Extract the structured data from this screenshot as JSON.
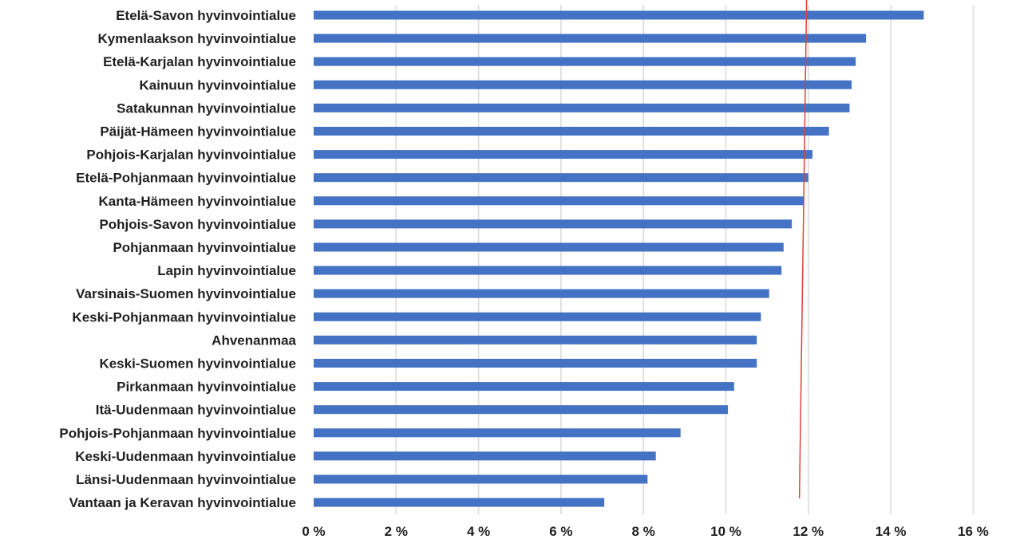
{
  "chart_data": {
    "type": "bar",
    "orientation": "horizontal",
    "categories": [
      "Etelä-Savon hyvinvointialue",
      "Kymenlaakson hyvinvointialue",
      "Etelä-Karjalan hyvinvointialue",
      "Kainuun hyvinvointialue",
      "Satakunnan hyvinvointialue",
      "Päijät-Hämeen hyvinvointialue",
      "Pohjois-Karjalan hyvinvointialue",
      "Etelä-Pohjanmaan hyvinvointialue",
      "Kanta-Hämeen hyvinvointialue",
      "Pohjois-Savon hyvinvointialue",
      "Pohjanmaan hyvinvointialue",
      "Lapin hyvinvointialue",
      "Varsinais-Suomen hyvinvointialue",
      "Keski-Pohjanmaan hyvinvointialue",
      "Ahvenanmaa",
      "Keski-Suomen hyvinvointialue",
      "Pirkanmaan hyvinvointialue",
      "Itä-Uudenmaan hyvinvointialue",
      "Pohjois-Pohjanmaan hyvinvointialue",
      "Keski-Uudenmaan hyvinvointialue",
      "Länsi-Uudenmaan hyvinvointialue",
      "Vantaan ja Keravan hyvinvointialue"
    ],
    "values": [
      14.8,
      13.4,
      13.15,
      13.05,
      13.0,
      12.5,
      12.1,
      12.0,
      11.9,
      11.6,
      11.4,
      11.35,
      11.05,
      10.85,
      10.75,
      10.75,
      10.2,
      10.05,
      8.9,
      8.3,
      8.1,
      7.05
    ],
    "xticks": [
      "0 %",
      "2 %",
      "4 %",
      "6 %",
      "8 %",
      "10 %",
      "12 %",
      "14 %",
      "16 %"
    ],
    "xlim": [
      0,
      16
    ],
    "grid": true,
    "reference_line": {
      "value": 11.9,
      "color": "#e0413c"
    },
    "colors": {
      "bar": "#4472c4",
      "grid": "#d9d9d9",
      "reference": "#e0413c"
    },
    "title": "",
    "xlabel": "",
    "ylabel": ""
  }
}
